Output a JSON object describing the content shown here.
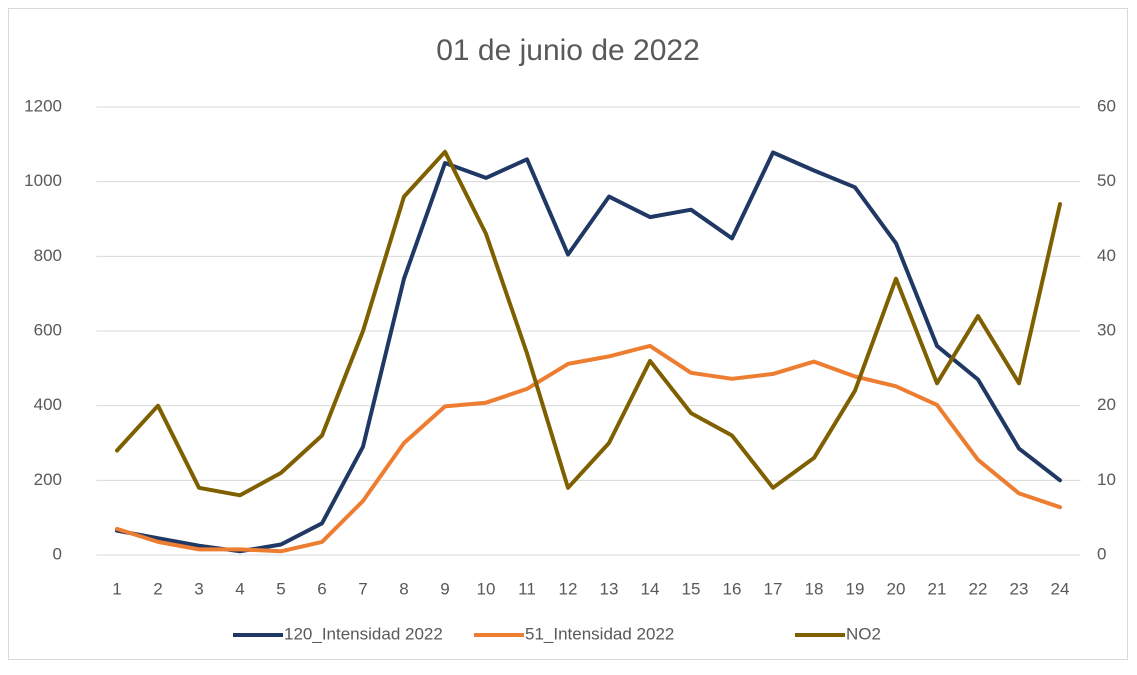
{
  "chart_data": {
    "type": "line",
    "title": "01 de junio de 2022",
    "categories": [
      "1",
      "2",
      "3",
      "4",
      "5",
      "6",
      "7",
      "8",
      "9",
      "10",
      "11",
      "12",
      "13",
      "14",
      "15",
      "16",
      "17",
      "18",
      "19",
      "20",
      "21",
      "22",
      "23",
      "24"
    ],
    "series": [
      {
        "name": "120_Intensidad 2022",
        "color": "#203864",
        "values": [
          65,
          45,
          25,
          10,
          28,
          85,
          290,
          740,
          1050,
          1010,
          1060,
          805,
          960,
          905,
          925,
          848,
          1078,
          1030,
          985,
          835,
          560,
          470,
          285,
          200
        ]
      },
      {
        "name": "51_Intensidad 2022",
        "color": "#ED7D31",
        "values": [
          70,
          35,
          15,
          15,
          10,
          35,
          145,
          300,
          398,
          408,
          445,
          512,
          532,
          560,
          488,
          472,
          485,
          518,
          478,
          452,
          402,
          255,
          165,
          128
        ]
      },
      {
        "name": "NO2",
        "color": "#7F6000",
        "axis": "y2",
        "values": [
          14,
          20,
          9,
          8,
          11,
          16,
          30,
          48,
          54,
          43,
          27,
          9,
          15,
          26,
          19,
          16,
          9,
          13,
          22,
          37,
          23,
          32,
          23,
          47
        ]
      }
    ],
    "ylim": [
      0,
      1200
    ],
    "yticks": [
      0,
      200,
      400,
      600,
      800,
      1000,
      1200
    ],
    "y2lim": [
      0,
      60
    ],
    "y2ticks": [
      0,
      10,
      20,
      30,
      40,
      50,
      60
    ],
    "grid": true,
    "legend": "bottom"
  }
}
